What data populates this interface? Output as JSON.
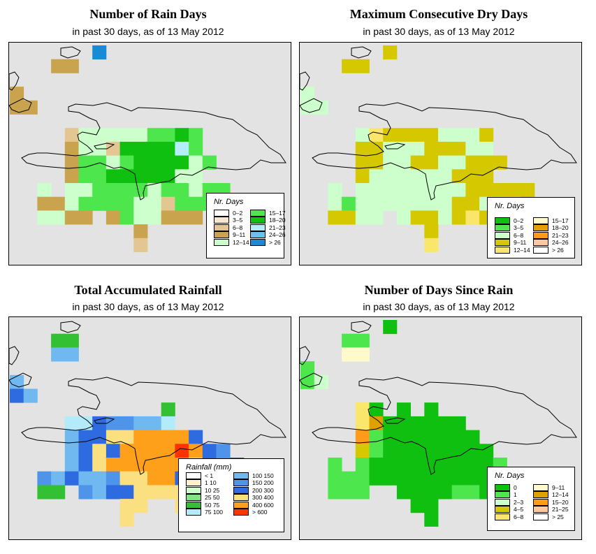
{
  "panels": [
    {
      "title": "Number of Rain Days",
      "subtitle": "in past 30 days, as of  13 May 2012",
      "legend": {
        "title": "Nr. Days",
        "items": [
          {
            "label": "0–2",
            "color": "#ffffff"
          },
          {
            "label": "3–5",
            "color": "#f5e6cc"
          },
          {
            "label": "6–8",
            "color": "#e3c691"
          },
          {
            "label": "9–11",
            "color": "#c9a34e"
          },
          {
            "label": "12–14",
            "color": "#ccffcc"
          },
          {
            "label": "15–17",
            "color": "#4de64d"
          },
          {
            "label": "18–20",
            "color": "#10c010"
          },
          {
            "label": "21–23",
            "color": "#b3eefa"
          },
          {
            "label": "24–26",
            "color": "#66c2f0"
          },
          {
            "label": "> 26",
            "color": "#1a8ad4"
          }
        ]
      }
    },
    {
      "title": "Maximum Consecutive Dry Days",
      "subtitle": "in past 30 days, as of  13 May 2012",
      "legend": {
        "title": "Nr. Days",
        "items": [
          {
            "label": "0–2",
            "color": "#10c010"
          },
          {
            "label": "3–5",
            "color": "#4de64d"
          },
          {
            "label": "6–8",
            "color": "#ccffcc"
          },
          {
            "label": "9–11",
            "color": "#d6c800"
          },
          {
            "label": "12–14",
            "color": "#fae66b"
          },
          {
            "label": "15–17",
            "color": "#fffacc"
          },
          {
            "label": "18–20",
            "color": "#e0a000"
          },
          {
            "label": "21–23",
            "color": "#ff9a1a"
          },
          {
            "label": "24–26",
            "color": "#ffc8a0"
          },
          {
            "label": "> 26",
            "color": "#ffffff"
          }
        ]
      }
    },
    {
      "title": "Total Accumulated Rainfall",
      "subtitle": "in past 30 days, as of  13 May 2012",
      "legend": {
        "title": "Rainfall (mm)",
        "items": [
          {
            "label": "< 1",
            "color": "#ffffff"
          },
          {
            "label": "1    10",
            "color": "#fff0cc"
          },
          {
            "label": "10    25",
            "color": "#ccffcc"
          },
          {
            "label": "25    50",
            "color": "#80e680"
          },
          {
            "label": "50    75",
            "color": "#33c033"
          },
          {
            "label": "75  100",
            "color": "#b3ebfa"
          },
          {
            "label": "100  150",
            "color": "#70b8f0"
          },
          {
            "label": "150  200",
            "color": "#4d94ea"
          },
          {
            "label": "200  300",
            "color": "#2e6be0"
          },
          {
            "label": "300  400",
            "color": "#fae080"
          },
          {
            "label": "400  600",
            "color": "#ffa01a"
          },
          {
            "label": "> 600",
            "color": "#ff3300"
          }
        ]
      }
    },
    {
      "title": "Number of Days Since Rain",
      "subtitle": "in past 30 days, as of  13 May 2012",
      "legend": {
        "title": "Nr. Days",
        "items": [
          {
            "label": "0",
            "color": "#10c010"
          },
          {
            "label": "1",
            "color": "#4de64d"
          },
          {
            "label": "2–3",
            "color": "#ccffcc"
          },
          {
            "label": "4–5",
            "color": "#d6c800"
          },
          {
            "label": "6–8",
            "color": "#fae66b"
          },
          {
            "label": "9–11",
            "color": "#fffacc"
          },
          {
            "label": "12–14",
            "color": "#e0a000"
          },
          {
            "label": "15–20",
            "color": "#ff9a1a"
          },
          {
            "label": "21–25",
            "color": "#ffc8a0"
          },
          {
            "label": "> 25",
            "color": "#ffffff"
          }
        ]
      }
    }
  ]
}
